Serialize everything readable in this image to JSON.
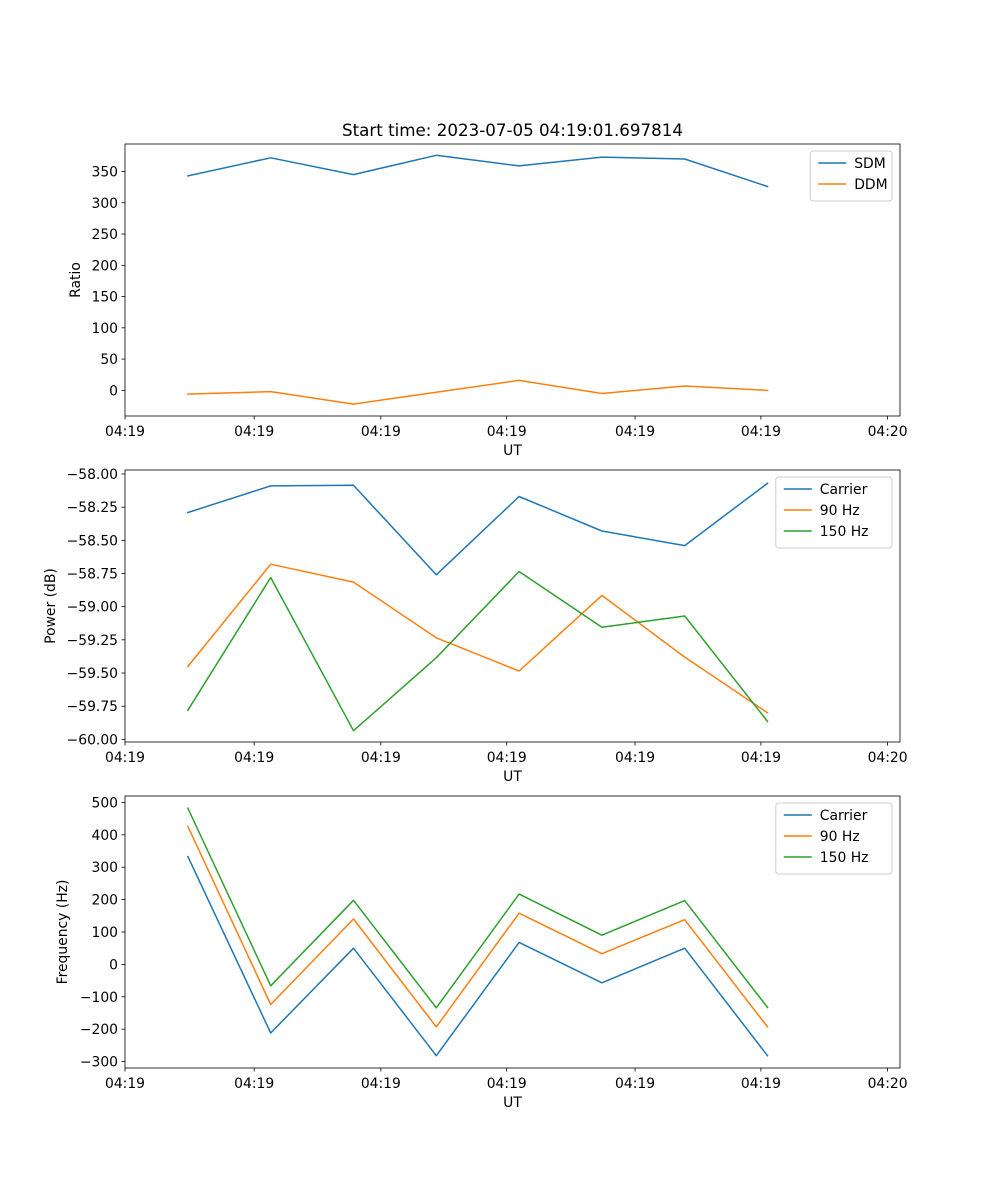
{
  "figure": {
    "title": "Start time: 2023-07-05 04:19:01.697814"
  },
  "chart_data": [
    {
      "type": "line",
      "title": "Start time: 2023-07-05 04:19:01.697814",
      "xlabel": "UT",
      "ylabel": "Ratio",
      "x": [
        1,
        2,
        3,
        4,
        5,
        6,
        7,
        8
      ],
      "xlim": [
        0.24,
        9.6
      ],
      "xticks": [
        0.24,
        1.8,
        3.33,
        4.85,
        6.4,
        7.92,
        9.45
      ],
      "xtick_labels": [
        "04:19",
        "04:19",
        "04:19",
        "04:19",
        "04:19",
        "04:19",
        "04:20"
      ],
      "ylim": [
        -41,
        394
      ],
      "yticks": [
        0,
        50,
        100,
        150,
        200,
        250,
        300,
        350
      ],
      "ytick_labels": [
        "0",
        "50",
        "100",
        "150",
        "200",
        "250",
        "300",
        "350"
      ],
      "legend_position": "top-right",
      "series": [
        {
          "name": "SDM",
          "color": "#1f77b4",
          "values": [
            343,
            372,
            345,
            376,
            359,
            373,
            370,
            326
          ]
        },
        {
          "name": "DDM",
          "color": "#ff7f0e",
          "values": [
            -6,
            -2,
            -22,
            -3,
            16,
            -5,
            7,
            0
          ]
        }
      ]
    },
    {
      "type": "line",
      "xlabel": "UT",
      "ylabel": "Power (dB)",
      "x": [
        1,
        2,
        3,
        4,
        5,
        6,
        7,
        8
      ],
      "xlim": [
        0.24,
        9.6
      ],
      "xticks": [
        0.24,
        1.8,
        3.33,
        4.85,
        6.4,
        7.92,
        9.45
      ],
      "xtick_labels": [
        "04:19",
        "04:19",
        "04:19",
        "04:19",
        "04:19",
        "04:19",
        "04:20"
      ],
      "ylim": [
        -60.02,
        -57.97
      ],
      "yticks": [
        -60.0,
        -59.75,
        -59.5,
        -59.25,
        -59.0,
        -58.75,
        -58.5,
        -58.25,
        -58.0
      ],
      "ytick_labels": [
        "−60.00",
        "−59.75",
        "−59.50",
        "−59.25",
        "−59.00",
        "−58.75",
        "−58.50",
        "−58.25",
        "−58.00"
      ],
      "legend_position": "top-right",
      "series": [
        {
          "name": "Carrier",
          "color": "#1f77b4",
          "values": [
            -58.29,
            -58.09,
            -58.085,
            -58.76,
            -58.17,
            -58.43,
            -58.54,
            -58.07
          ]
        },
        {
          "name": "90 Hz",
          "color": "#ff7f0e",
          "values": [
            -59.45,
            -58.68,
            -58.815,
            -59.235,
            -59.485,
            -58.915,
            -59.38,
            -59.8
          ]
        },
        {
          "name": "150 Hz",
          "color": "#2ca02c",
          "values": [
            -59.78,
            -58.78,
            -59.935,
            -59.385,
            -58.735,
            -59.155,
            -59.07,
            -59.865
          ]
        }
      ]
    },
    {
      "type": "line",
      "xlabel": "UT",
      "ylabel": "Frequency (Hz)",
      "x": [
        1,
        2,
        3,
        4,
        5,
        6,
        7,
        8
      ],
      "xlim": [
        0.24,
        9.6
      ],
      "xticks": [
        0.24,
        1.8,
        3.33,
        4.85,
        6.4,
        7.92,
        9.45
      ],
      "xtick_labels": [
        "04:19",
        "04:19",
        "04:19",
        "04:19",
        "04:19",
        "04:19",
        "04:20"
      ],
      "ylim": [
        -320,
        520
      ],
      "yticks": [
        -300,
        -200,
        -100,
        0,
        100,
        200,
        300,
        400,
        500
      ],
      "ytick_labels": [
        "−300",
        "−200",
        "−100",
        "0",
        "100",
        "200",
        "300",
        "400",
        "500"
      ],
      "legend_position": "top-right",
      "series": [
        {
          "name": "Carrier",
          "color": "#1f77b4",
          "values": [
            333,
            -212,
            50,
            -282,
            68,
            -57,
            50,
            -282
          ]
        },
        {
          "name": "90 Hz",
          "color": "#ff7f0e",
          "values": [
            426,
            -124,
            140,
            -193,
            158,
            33,
            138,
            -193
          ]
        },
        {
          "name": "150 Hz",
          "color": "#2ca02c",
          "values": [
            482,
            -66,
            198,
            -134,
            217,
            90,
            197,
            -133
          ]
        }
      ]
    }
  ]
}
